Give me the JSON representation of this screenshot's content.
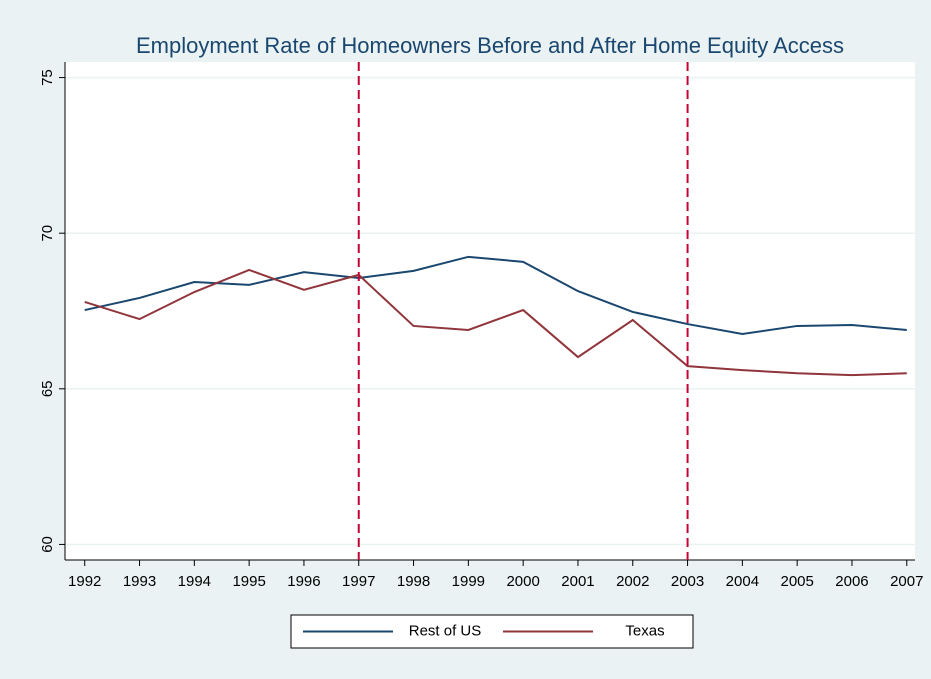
{
  "chart_data": {
    "type": "line",
    "title": "Employment Rate of Homeowners Before and After Home Equity Access",
    "x": [
      1992,
      1993,
      1994,
      1995,
      1996,
      1997,
      1998,
      1999,
      2000,
      2001,
      2002,
      2003,
      2004,
      2005,
      2006,
      2007
    ],
    "series": [
      {
        "name": "Rest of US",
        "color": "#1a476f",
        "values": [
          67.53,
          67.92,
          68.43,
          68.34,
          68.75,
          68.56,
          68.79,
          69.24,
          69.08,
          68.14,
          67.47,
          67.08,
          66.76,
          67.02,
          67.05,
          66.89
        ]
      },
      {
        "name": "Texas",
        "color": "#90353b",
        "values": [
          67.79,
          67.24,
          68.11,
          68.82,
          68.18,
          68.66,
          67.02,
          66.89,
          67.53,
          66.02,
          67.21,
          65.73,
          65.6,
          65.5,
          65.44,
          65.5
        ]
      }
    ],
    "xlim": [
      1991.64,
      2007.15
    ],
    "xticks": [
      1992,
      1993,
      1994,
      1995,
      1996,
      1997,
      1998,
      1999,
      2000,
      2001,
      2002,
      2003,
      2004,
      2005,
      2006,
      2007
    ],
    "ylim": [
      59.5,
      75.5
    ],
    "yticks": [
      60,
      65,
      70,
      75
    ],
    "vlines": [
      1997,
      2003
    ],
    "vline_color": "#c10534",
    "grid": true,
    "legend_position": "bottom"
  }
}
